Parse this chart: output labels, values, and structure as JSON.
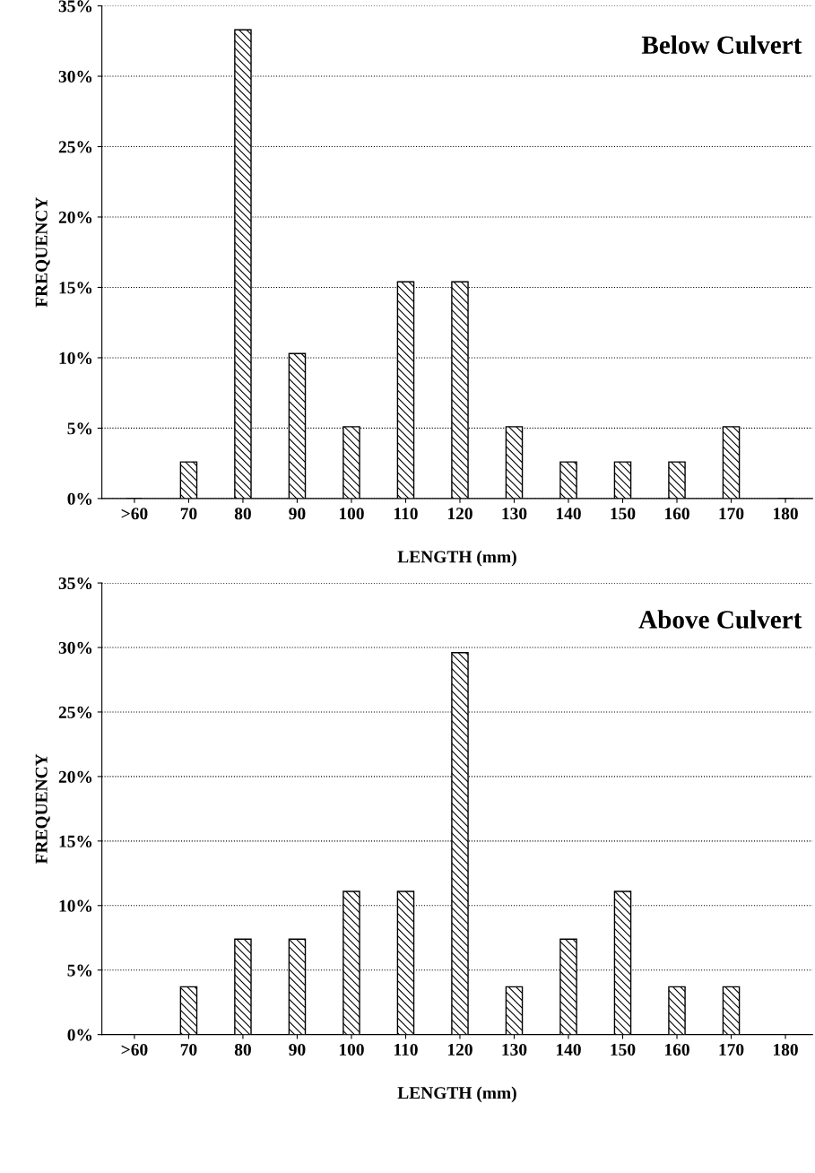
{
  "chart_data": [
    {
      "type": "bar",
      "title": "Below Culvert",
      "xlabel": "LENGTH (mm)",
      "ylabel": "FREQUENCY",
      "categories": [
        ">60",
        "70",
        "80",
        "90",
        "100",
        "110",
        "120",
        "130",
        "140",
        "150",
        "160",
        "170",
        "180"
      ],
      "values": [
        0,
        2.6,
        33.3,
        10.3,
        5.1,
        15.4,
        15.4,
        5.1,
        2.6,
        2.6,
        2.6,
        5.1,
        0
      ],
      "color": "#000000",
      "ylim": [
        0,
        35
      ],
      "yticks": [
        {
          "value": 0,
          "label": "0%"
        },
        {
          "value": 5,
          "label": "5%"
        },
        {
          "value": 10,
          "label": "10%"
        },
        {
          "value": 15,
          "label": "15%"
        },
        {
          "value": 20,
          "label": "20%"
        },
        {
          "value": 25,
          "label": "25%"
        },
        {
          "value": 30,
          "label": "30%"
        },
        {
          "value": 35,
          "label": "35%"
        }
      ],
      "grid": "y"
    },
    {
      "type": "bar",
      "title": "Above Culvert",
      "xlabel": "LENGTH (mm)",
      "ylabel": "FREQUENCY",
      "categories": [
        ">60",
        "70",
        "80",
        "90",
        "100",
        "110",
        "120",
        "130",
        "140",
        "150",
        "160",
        "170",
        "180"
      ],
      "values": [
        0,
        3.7,
        7.4,
        7.4,
        11.1,
        11.1,
        29.6,
        3.7,
        7.4,
        11.1,
        3.7,
        3.7,
        0
      ],
      "color": "#000000",
      "ylim": [
        0,
        35
      ],
      "yticks": [
        {
          "value": 0,
          "label": "0%"
        },
        {
          "value": 5,
          "label": "5%"
        },
        {
          "value": 10,
          "label": "10%"
        },
        {
          "value": 15,
          "label": "15%"
        },
        {
          "value": 20,
          "label": "20%"
        },
        {
          "value": 25,
          "label": "25%"
        },
        {
          "value": 30,
          "label": "30%"
        },
        {
          "value": 35,
          "label": "35%"
        }
      ],
      "grid": "y"
    }
  ]
}
